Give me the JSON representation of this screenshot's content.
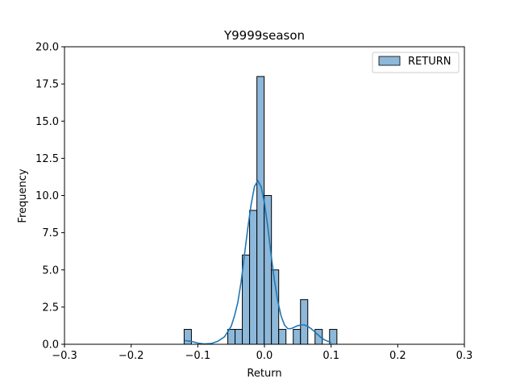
{
  "chart_data": {
    "type": "bar",
    "subtype": "histogram-with-kde",
    "title": "Y9999season",
    "xlabel": "Return",
    "ylabel": "Frequency",
    "xlim": [
      -0.3,
      0.3
    ],
    "ylim": [
      0,
      20
    ],
    "xticks": [
      -0.3,
      -0.2,
      -0.1,
      0.0,
      0.1,
      0.2,
      0.3
    ],
    "xtick_labels": [
      "−0.3",
      "−0.2",
      "−0.1",
      "0.0",
      "0.1",
      "0.2",
      "0.3"
    ],
    "yticks": [
      0,
      2.5,
      5,
      7.5,
      10,
      12.5,
      15,
      17.5,
      20
    ],
    "ytick_labels": [
      "0.0",
      "2.5",
      "5.0",
      "7.5",
      "10.0",
      "12.5",
      "15.0",
      "17.5",
      "20.0"
    ],
    "grid": false,
    "legend_position": "top-right",
    "series": [
      {
        "name": "RETURN",
        "color": "#1f77b4",
        "bar_fill": "#8db8d9",
        "bins": [
          {
            "x0": -0.1205,
            "x1": -0.1096,
            "count": 1
          },
          {
            "x0": -0.055,
            "x1": -0.0441,
            "count": 1
          },
          {
            "x0": -0.0441,
            "x1": -0.0332,
            "count": 1
          },
          {
            "x0": -0.0332,
            "x1": -0.0223,
            "count": 6
          },
          {
            "x0": -0.0223,
            "x1": -0.0113,
            "count": 9
          },
          {
            "x0": -0.0113,
            "x1": -0.0004,
            "count": 18
          },
          {
            "x0": -0.0004,
            "x1": 0.0105,
            "count": 10
          },
          {
            "x0": 0.0105,
            "x1": 0.0214,
            "count": 5
          },
          {
            "x0": 0.0214,
            "x1": 0.0323,
            "count": 1
          },
          {
            "x0": 0.0432,
            "x1": 0.0541,
            "count": 1
          },
          {
            "x0": 0.0541,
            "x1": 0.065,
            "count": 3
          },
          {
            "x0": 0.0759,
            "x1": 0.0868,
            "count": 1
          },
          {
            "x0": 0.0977,
            "x1": 0.1087,
            "count": 1
          }
        ],
        "kde": {
          "x": [
            -0.12,
            -0.11,
            -0.1,
            -0.09,
            -0.08,
            -0.07,
            -0.06,
            -0.05,
            -0.045,
            -0.04,
            -0.035,
            -0.03,
            -0.025,
            -0.02,
            -0.015,
            -0.01,
            -0.005,
            0.0,
            0.005,
            0.01,
            0.015,
            0.02,
            0.025,
            0.03,
            0.035,
            0.04,
            0.045,
            0.05,
            0.055,
            0.06,
            0.065,
            0.07,
            0.075,
            0.08,
            0.085,
            0.09,
            0.095,
            0.1
          ],
          "y": [
            0.25,
            0.2,
            0.08,
            0.02,
            0.05,
            0.2,
            0.5,
            1.2,
            1.9,
            2.8,
            4.2,
            6.0,
            7.8,
            9.4,
            10.6,
            11.0,
            10.6,
            9.5,
            7.9,
            6.0,
            4.3,
            2.9,
            1.9,
            1.3,
            1.05,
            1.05,
            1.15,
            1.25,
            1.3,
            1.3,
            1.2,
            1.05,
            0.85,
            0.65,
            0.45,
            0.3,
            0.2,
            0.12
          ]
        }
      }
    ]
  }
}
